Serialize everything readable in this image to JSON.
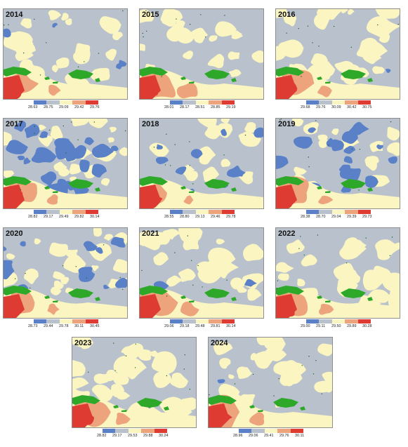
{
  "colors": {
    "cool": "#5a81c8",
    "neutral": "#b9c2cc",
    "warm": "#fbf5c2",
    "orange": "#eda47c",
    "hot": "#de3b33",
    "land": "#2ea829"
  },
  "panels": [
    {
      "year": "2014",
      "ticks": [
        "28.63",
        "28.75",
        "29.09",
        "29.42",
        "29.76"
      ],
      "sst_range": [
        28.63,
        29.76
      ]
    },
    {
      "year": "2015",
      "ticks": [
        "28.01",
        "28.17",
        "28.51",
        "28.85",
        "29.19"
      ],
      "sst_range": [
        28.01,
        29.19
      ]
    },
    {
      "year": "2016",
      "ticks": [
        "29.68",
        "29.76",
        "30.09",
        "30.42",
        "30.75"
      ],
      "sst_range": [
        29.68,
        30.75
      ]
    },
    {
      "year": "2017",
      "ticks": [
        "28.82",
        "29.17",
        "29.49",
        "29.82",
        "30.14"
      ],
      "sst_range": [
        28.82,
        30.14
      ]
    },
    {
      "year": "2018",
      "ticks": [
        "28.55",
        "28.80",
        "29.13",
        "29.46",
        "29.78"
      ],
      "sst_range": [
        28.55,
        29.78
      ]
    },
    {
      "year": "2019",
      "ticks": [
        "28.38",
        "28.70",
        "29.04",
        "29.39",
        "29.73"
      ],
      "sst_range": [
        28.38,
        29.73
      ]
    },
    {
      "year": "2020",
      "ticks": [
        "28.73",
        "29.44",
        "29.78",
        "30.11",
        "30.45"
      ],
      "sst_range": [
        28.73,
        30.45
      ]
    },
    {
      "year": "2021",
      "ticks": [
        "29.06",
        "29.18",
        "29.48",
        "29.81",
        "30.14"
      ],
      "sst_range": [
        29.06,
        30.14
      ]
    },
    {
      "year": "2022",
      "ticks": [
        "29.00",
        "29.11",
        "29.50",
        "29.89",
        "30.28"
      ],
      "sst_range": [
        29.0,
        30.28
      ]
    },
    {
      "year": "2023",
      "ticks": [
        "28.82",
        "29.17",
        "29.53",
        "29.88",
        "30.24"
      ],
      "sst_range": [
        28.82,
        30.24
      ]
    },
    {
      "year": "2024",
      "ticks": [
        "28.96",
        "29.06",
        "29.41",
        "29.76",
        "30.11"
      ],
      "sst_range": [
        28.96,
        30.11
      ]
    }
  ],
  "legend_colors": [
    "#5a81c8",
    "#b9c2cc",
    "#fbf5c2",
    "#eda47c",
    "#de3b33"
  ]
}
